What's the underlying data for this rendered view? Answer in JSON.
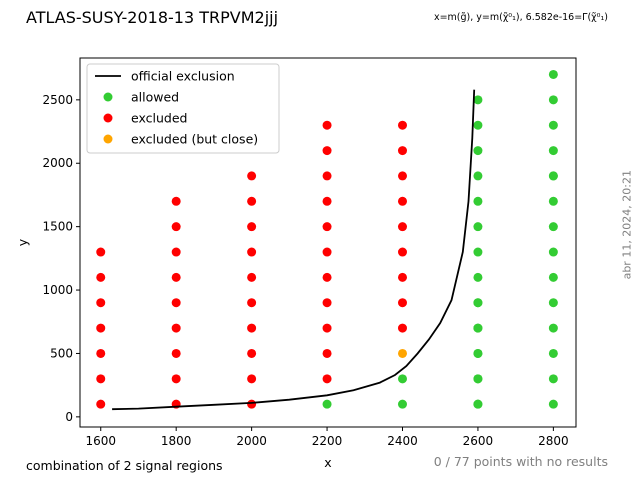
{
  "header": {
    "title": "ATLAS-SUSY-2018-13 TRPVM2jjj",
    "subtitle": "x=m(g̃), y=m(χ̃⁰₁), 6.582e-16=Γ(χ̃⁰₁)",
    "timestamp": "abr 11, 2024, 20:21"
  },
  "footer": {
    "left_note": "combination of 2 signal regions",
    "right_note": "0 / 77 points with no results"
  },
  "colors": {
    "allowed": "#33cc33",
    "excluded": "#ff0000",
    "excluded_close": "#ffa500",
    "exclusion_line": "#000000"
  },
  "chart_data": {
    "type": "scatter",
    "xlabel": "x",
    "ylabel": "y",
    "xlim": [
      1545,
      2860
    ],
    "ylim": [
      -80,
      2830
    ],
    "xticks": [
      1600,
      1800,
      2000,
      2200,
      2400,
      2600,
      2800
    ],
    "yticks": [
      0,
      500,
      1000,
      1500,
      2000,
      2500
    ],
    "legend_position": "top-left",
    "legend": [
      {
        "label": "official exclusion",
        "kind": "line",
        "color": "#000000"
      },
      {
        "label": "allowed",
        "kind": "marker",
        "color": "#33cc33"
      },
      {
        "label": "excluded",
        "kind": "marker",
        "color": "#ff0000"
      },
      {
        "label": "excluded (but close)",
        "kind": "marker",
        "color": "#ffa500"
      }
    ],
    "exclusion_curve": {
      "x": [
        1630,
        1700,
        1800,
        1900,
        2000,
        2100,
        2200,
        2270,
        2340,
        2380,
        2410,
        2440,
        2470,
        2500,
        2530,
        2560,
        2575,
        2585,
        2590
      ],
      "y": [
        60,
        65,
        80,
        95,
        110,
        135,
        170,
        210,
        270,
        330,
        400,
        500,
        610,
        740,
        920,
        1300,
        1700,
        2200,
        2580
      ]
    },
    "points": {
      "allowed": {
        "x": [
          2200,
          2400,
          2400,
          2600,
          2600,
          2600,
          2600,
          2600,
          2600,
          2600,
          2600,
          2600,
          2600,
          2600,
          2600,
          2600,
          2600,
          2600,
          2600,
          2600,
          2600,
          2800,
          2800,
          2800,
          2800,
          2800,
          2800,
          2800,
          2800,
          2800,
          2800,
          2800,
          2800,
          2800,
          2800,
          2800
        ],
        "y": [
          100,
          100,
          300,
          100,
          300,
          500,
          700,
          900,
          1100,
          1300,
          1500,
          1700,
          1900,
          2100,
          2300,
          2500,
          100,
          300,
          500,
          700,
          900,
          100,
          300,
          500,
          700,
          900,
          1100,
          1300,
          1500,
          1700,
          1900,
          2100,
          2300,
          2500,
          2700,
          1900
        ]
      },
      "excluded": {
        "x": [
          1600,
          1600,
          1600,
          1600,
          1600,
          1600,
          1600,
          1800,
          1800,
          1800,
          1800,
          1800,
          1800,
          1800,
          1800,
          1800,
          2000,
          2000,
          2000,
          2000,
          2000,
          2000,
          2000,
          2000,
          2000,
          2000,
          2200,
          2200,
          2200,
          2200,
          2200,
          2200,
          2200,
          2200,
          2200,
          2200,
          2200,
          2400,
          2400,
          2400,
          2400,
          2400,
          2400,
          2400,
          2400,
          2400
        ],
        "y": [
          100,
          300,
          500,
          700,
          900,
          1100,
          1300,
          100,
          300,
          500,
          700,
          900,
          1100,
          1300,
          1500,
          1700,
          100,
          300,
          500,
          700,
          900,
          1100,
          1300,
          1500,
          1700,
          1900,
          300,
          500,
          700,
          900,
          1100,
          1300,
          1500,
          1700,
          1900,
          2100,
          2300,
          700,
          900,
          1100,
          1300,
          1500,
          1700,
          1900,
          2100,
          2300
        ]
      },
      "excluded_close": {
        "x": [
          2400
        ],
        "y": [
          500
        ]
      }
    }
  }
}
